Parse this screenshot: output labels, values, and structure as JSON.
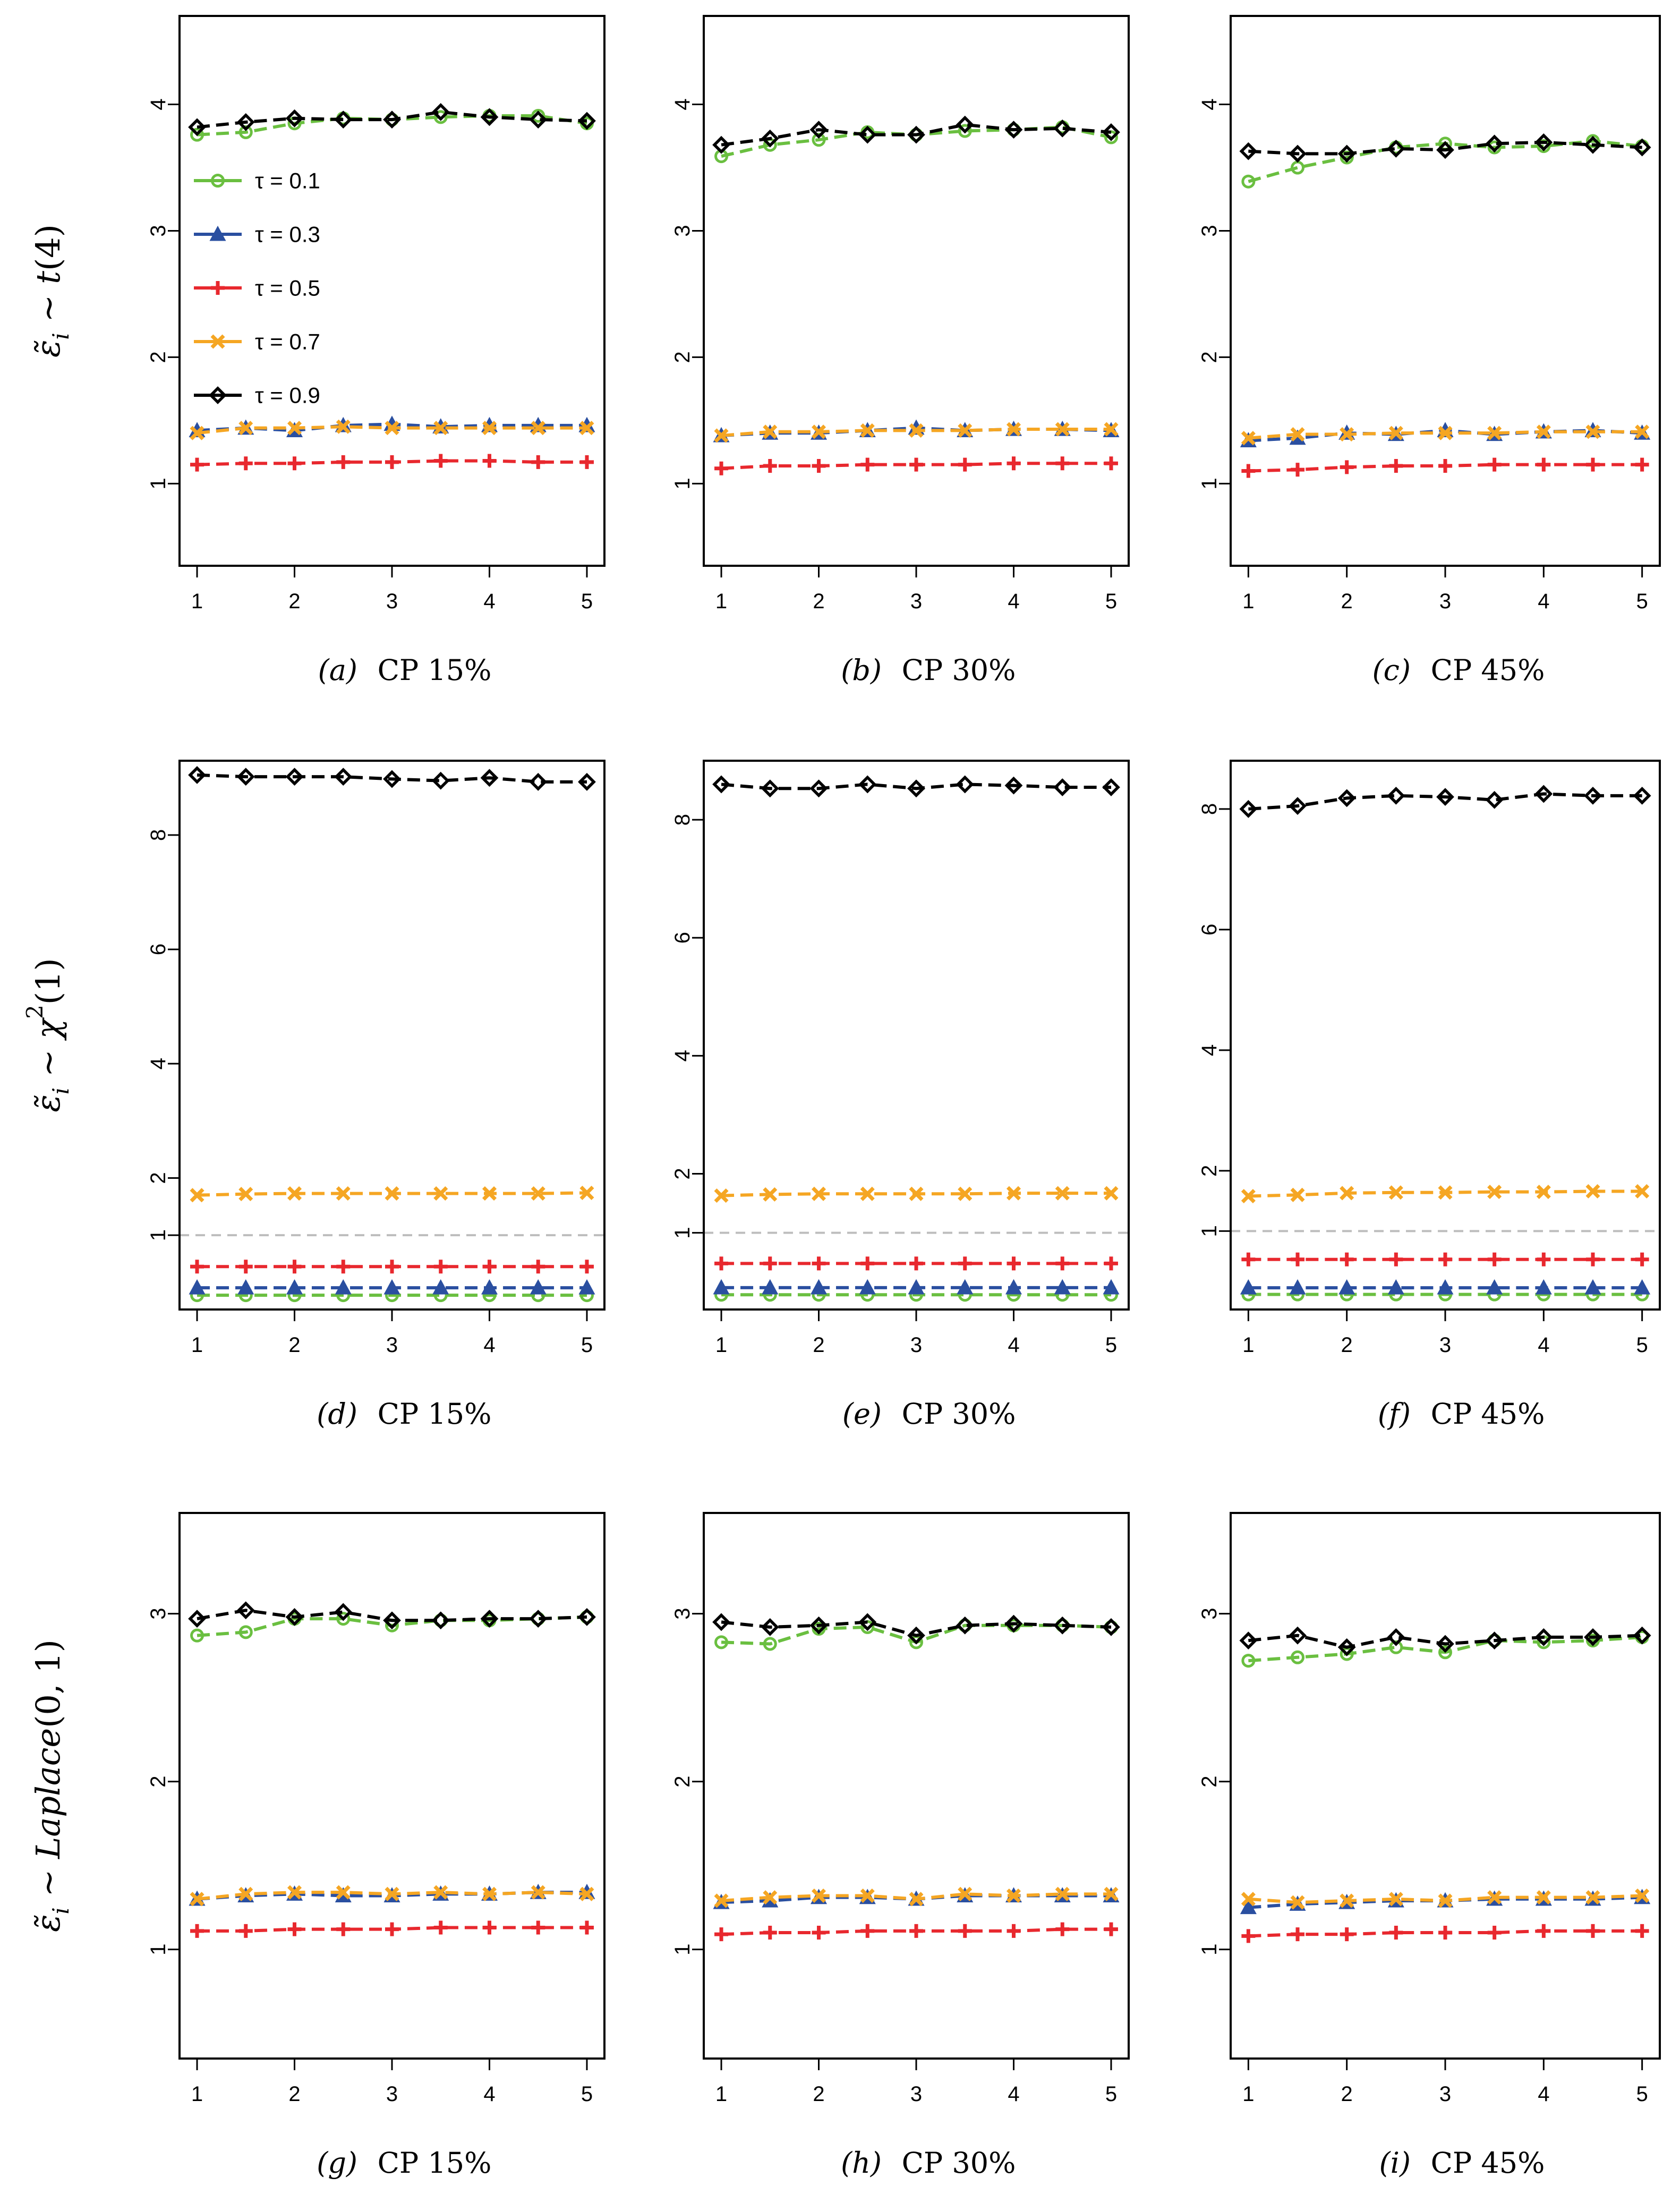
{
  "figure": {
    "row_labels": [
      {
        "parts": [
          {
            "t": "ε̃",
            "it": true
          },
          {
            "t": "i",
            "it": true,
            "sub": true
          },
          {
            "t": " ~ "
          },
          {
            "t": "t",
            "it": true
          },
          {
            "t": "(4)"
          }
        ]
      },
      {
        "parts": [
          {
            "t": "ε̃",
            "it": true
          },
          {
            "t": "i",
            "it": true,
            "sub": true
          },
          {
            "t": " ~ "
          },
          {
            "t": "χ",
            "it": true
          },
          {
            "t": "2",
            "sup": true
          },
          {
            "t": "(1)"
          }
        ]
      },
      {
        "parts": [
          {
            "t": "ε̃",
            "it": true
          },
          {
            "t": "i",
            "it": true,
            "sub": true
          },
          {
            "t": " ~ "
          },
          {
            "t": "Laplace",
            "it": true
          },
          {
            "t": "(0, 1)"
          }
        ]
      }
    ]
  },
  "legend": {
    "location": "panel-a-left",
    "entries": [
      {
        "label": "τ = 0.1",
        "color": "#6abf40",
        "marker": "circle"
      },
      {
        "label": "τ = 0.3",
        "color": "#2a4fa0",
        "marker": "triangle"
      },
      {
        "label": "τ = 0.5",
        "color": "#e8282e",
        "marker": "plus"
      },
      {
        "label": "τ = 0.7",
        "color": "#f5a623",
        "marker": "cross"
      },
      {
        "label": "τ = 0.9",
        "color": "#000000",
        "marker": "diamond"
      }
    ]
  },
  "chart_data": [
    {
      "type": "line",
      "id": "a",
      "caption_letter": "(a)",
      "caption_text": "CP 15%",
      "x": [
        1,
        1.5,
        2,
        2.5,
        3,
        3.5,
        4,
        4.5,
        5
      ],
      "xticks": [
        1,
        2,
        3,
        4,
        5
      ],
      "xlim": [
        0.82,
        5.18
      ],
      "ylim": [
        0.35,
        4.7
      ],
      "yticks": [
        1,
        2,
        3,
        4
      ],
      "series": [
        {
          "name": "τ = 0.1",
          "values": [
            3.76,
            3.78,
            3.85,
            3.89,
            3.88,
            3.9,
            3.91,
            3.91,
            3.85
          ]
        },
        {
          "name": "τ = 0.3",
          "values": [
            1.42,
            1.44,
            1.42,
            1.46,
            1.47,
            1.45,
            1.46,
            1.46,
            1.46
          ]
        },
        {
          "name": "τ = 0.5",
          "values": [
            1.15,
            1.16,
            1.16,
            1.17,
            1.17,
            1.18,
            1.18,
            1.17,
            1.17
          ]
        },
        {
          "name": "τ = 0.7",
          "values": [
            1.4,
            1.44,
            1.44,
            1.45,
            1.44,
            1.44,
            1.44,
            1.44,
            1.44
          ]
        },
        {
          "name": "τ = 0.9",
          "values": [
            3.82,
            3.86,
            3.89,
            3.88,
            3.88,
            3.94,
            3.9,
            3.88,
            3.87
          ]
        }
      ]
    },
    {
      "type": "line",
      "id": "b",
      "caption_letter": "(b)",
      "caption_text": "CP 30%",
      "x": [
        1,
        1.5,
        2,
        2.5,
        3,
        3.5,
        4,
        4.5,
        5
      ],
      "xticks": [
        1,
        2,
        3,
        4,
        5
      ],
      "xlim": [
        0.82,
        5.18
      ],
      "ylim": [
        0.35,
        4.7
      ],
      "yticks": [
        1,
        2,
        3,
        4
      ],
      "series": [
        {
          "name": "τ = 0.1",
          "values": [
            3.59,
            3.68,
            3.72,
            3.78,
            3.76,
            3.79,
            3.8,
            3.82,
            3.74
          ]
        },
        {
          "name": "τ = 0.3",
          "values": [
            1.38,
            1.4,
            1.4,
            1.42,
            1.44,
            1.42,
            1.43,
            1.43,
            1.42
          ]
        },
        {
          "name": "τ = 0.5",
          "values": [
            1.12,
            1.14,
            1.14,
            1.15,
            1.15,
            1.15,
            1.16,
            1.16,
            1.16
          ]
        },
        {
          "name": "τ = 0.7",
          "values": [
            1.38,
            1.41,
            1.41,
            1.42,
            1.42,
            1.42,
            1.43,
            1.43,
            1.43
          ]
        },
        {
          "name": "τ = 0.9",
          "values": [
            3.68,
            3.73,
            3.8,
            3.76,
            3.76,
            3.84,
            3.8,
            3.81,
            3.78
          ]
        }
      ]
    },
    {
      "type": "line",
      "id": "c",
      "caption_letter": "(c)",
      "caption_text": "CP 45%",
      "x": [
        1,
        1.5,
        2,
        2.5,
        3,
        3.5,
        4,
        4.5,
        5
      ],
      "xticks": [
        1,
        2,
        3,
        4,
        5
      ],
      "xlim": [
        0.82,
        5.18
      ],
      "ylim": [
        0.35,
        4.7
      ],
      "yticks": [
        1,
        2,
        3,
        4
      ],
      "series": [
        {
          "name": "τ = 0.1",
          "values": [
            3.39,
            3.5,
            3.58,
            3.66,
            3.69,
            3.66,
            3.67,
            3.71,
            3.67
          ]
        },
        {
          "name": "τ = 0.3",
          "values": [
            1.34,
            1.36,
            1.4,
            1.39,
            1.42,
            1.39,
            1.41,
            1.42,
            1.4
          ]
        },
        {
          "name": "τ = 0.5",
          "values": [
            1.1,
            1.11,
            1.13,
            1.14,
            1.14,
            1.15,
            1.15,
            1.15,
            1.15
          ]
        },
        {
          "name": "τ = 0.7",
          "values": [
            1.36,
            1.39,
            1.39,
            1.4,
            1.4,
            1.4,
            1.41,
            1.41,
            1.41
          ]
        },
        {
          "name": "τ = 0.9",
          "values": [
            3.63,
            3.61,
            3.61,
            3.65,
            3.64,
            3.69,
            3.7,
            3.68,
            3.66
          ]
        }
      ]
    },
    {
      "type": "line",
      "id": "d",
      "caption_letter": "(d)",
      "caption_text": "CP 15%",
      "x": [
        1,
        1.5,
        2,
        2.5,
        3,
        3.5,
        4,
        4.5,
        5
      ],
      "xticks": [
        1,
        2,
        3,
        4,
        5
      ],
      "xlim": [
        0.82,
        5.18
      ],
      "ylim": [
        -0.3,
        9.3
      ],
      "yticks": [
        1,
        2,
        4,
        6,
        8
      ],
      "hline": 1,
      "series": [
        {
          "name": "τ = 0.1",
          "values": [
            -0.05,
            -0.05,
            -0.05,
            -0.05,
            -0.05,
            -0.05,
            -0.05,
            -0.05,
            -0.05
          ]
        },
        {
          "name": "τ = 0.3",
          "values": [
            0.08,
            0.08,
            0.08,
            0.08,
            0.08,
            0.08,
            0.08,
            0.08,
            0.08
          ]
        },
        {
          "name": "τ = 0.5",
          "values": [
            0.45,
            0.45,
            0.45,
            0.45,
            0.45,
            0.45,
            0.45,
            0.45,
            0.45
          ]
        },
        {
          "name": "τ = 0.7",
          "values": [
            1.7,
            1.72,
            1.73,
            1.73,
            1.73,
            1.73,
            1.73,
            1.73,
            1.74
          ]
        },
        {
          "name": "τ = 0.9",
          "values": [
            9.05,
            9.02,
            9.02,
            9.02,
            8.98,
            8.95,
            9.0,
            8.93,
            8.93
          ]
        }
      ]
    },
    {
      "type": "line",
      "id": "e",
      "caption_letter": "(e)",
      "caption_text": "CP 30%",
      "x": [
        1,
        1.5,
        2,
        2.5,
        3,
        3.5,
        4,
        4.5,
        5
      ],
      "xticks": [
        1,
        2,
        3,
        4,
        5
      ],
      "xlim": [
        0.82,
        5.18
      ],
      "ylim": [
        -0.3,
        9.0
      ],
      "yticks": [
        1,
        2,
        4,
        6,
        8
      ],
      "hline": 1,
      "series": [
        {
          "name": "τ = 0.1",
          "values": [
            -0.05,
            -0.05,
            -0.05,
            -0.05,
            -0.05,
            -0.05,
            -0.05,
            -0.05,
            -0.05
          ]
        },
        {
          "name": "τ = 0.3",
          "values": [
            0.07,
            0.07,
            0.07,
            0.07,
            0.07,
            0.07,
            0.07,
            0.07,
            0.07
          ]
        },
        {
          "name": "τ = 0.5",
          "values": [
            0.48,
            0.48,
            0.48,
            0.48,
            0.48,
            0.48,
            0.48,
            0.48,
            0.48
          ]
        },
        {
          "name": "τ = 0.7",
          "values": [
            1.63,
            1.65,
            1.66,
            1.66,
            1.66,
            1.66,
            1.67,
            1.67,
            1.67
          ]
        },
        {
          "name": "τ = 0.9",
          "values": [
            8.6,
            8.53,
            8.53,
            8.6,
            8.53,
            8.6,
            8.58,
            8.55,
            8.55
          ]
        }
      ]
    },
    {
      "type": "line",
      "id": "f",
      "caption_letter": "(f)",
      "caption_text": "CP 45%",
      "x": [
        1,
        1.5,
        2,
        2.5,
        3,
        3.5,
        4,
        4.5,
        5
      ],
      "xticks": [
        1,
        2,
        3,
        4,
        5
      ],
      "xlim": [
        0.82,
        5.18
      ],
      "ylim": [
        -0.3,
        8.8
      ],
      "yticks": [
        1,
        2,
        4,
        6,
        8
      ],
      "hline": 1,
      "series": [
        {
          "name": "τ = 0.1",
          "values": [
            -0.05,
            -0.05,
            -0.05,
            -0.05,
            -0.05,
            -0.05,
            -0.05,
            -0.05,
            -0.05
          ]
        },
        {
          "name": "τ = 0.3",
          "values": [
            0.06,
            0.06,
            0.06,
            0.06,
            0.06,
            0.06,
            0.06,
            0.06,
            0.06
          ]
        },
        {
          "name": "τ = 0.5",
          "values": [
            0.53,
            0.53,
            0.53,
            0.53,
            0.53,
            0.53,
            0.53,
            0.53,
            0.53
          ]
        },
        {
          "name": "τ = 0.7",
          "values": [
            1.58,
            1.6,
            1.63,
            1.64,
            1.64,
            1.65,
            1.65,
            1.66,
            1.66
          ]
        },
        {
          "name": "τ = 0.9",
          "values": [
            8.0,
            8.05,
            8.18,
            8.22,
            8.2,
            8.15,
            8.25,
            8.22,
            8.22
          ]
        }
      ]
    },
    {
      "type": "line",
      "id": "g",
      "caption_letter": "(g)",
      "caption_text": "CP 15%",
      "x": [
        1,
        1.5,
        2,
        2.5,
        3,
        3.5,
        4,
        4.5,
        5
      ],
      "xticks": [
        1,
        2,
        3,
        4,
        5
      ],
      "xlim": [
        0.82,
        5.18
      ],
      "ylim": [
        0.35,
        3.6
      ],
      "yticks": [
        1,
        2,
        3
      ],
      "series": [
        {
          "name": "τ = 0.1",
          "values": [
            2.87,
            2.89,
            2.97,
            2.97,
            2.93,
            2.96,
            2.96,
            2.97,
            2.98
          ]
        },
        {
          "name": "τ = 0.3",
          "values": [
            1.3,
            1.32,
            1.33,
            1.32,
            1.32,
            1.33,
            1.33,
            1.34,
            1.34
          ]
        },
        {
          "name": "τ = 0.5",
          "values": [
            1.11,
            1.11,
            1.12,
            1.12,
            1.12,
            1.13,
            1.13,
            1.13,
            1.13
          ]
        },
        {
          "name": "τ = 0.7",
          "values": [
            1.3,
            1.33,
            1.34,
            1.34,
            1.33,
            1.34,
            1.33,
            1.34,
            1.33
          ]
        },
        {
          "name": "τ = 0.9",
          "values": [
            2.97,
            3.02,
            2.98,
            3.01,
            2.96,
            2.96,
            2.97,
            2.97,
            2.98
          ]
        }
      ]
    },
    {
      "type": "line",
      "id": "h",
      "caption_letter": "(h)",
      "caption_text": "CP 30%",
      "x": [
        1,
        1.5,
        2,
        2.5,
        3,
        3.5,
        4,
        4.5,
        5
      ],
      "xticks": [
        1,
        2,
        3,
        4,
        5
      ],
      "xlim": [
        0.82,
        5.18
      ],
      "ylim": [
        0.35,
        3.6
      ],
      "yticks": [
        1,
        2,
        3
      ],
      "series": [
        {
          "name": "τ = 0.1",
          "values": [
            2.83,
            2.82,
            2.91,
            2.92,
            2.83,
            2.93,
            2.93,
            2.93,
            2.92
          ]
        },
        {
          "name": "τ = 0.3",
          "values": [
            1.28,
            1.29,
            1.31,
            1.31,
            1.3,
            1.32,
            1.32,
            1.32,
            1.32
          ]
        },
        {
          "name": "τ = 0.5",
          "values": [
            1.09,
            1.1,
            1.1,
            1.11,
            1.11,
            1.11,
            1.11,
            1.12,
            1.12
          ]
        },
        {
          "name": "τ = 0.7",
          "values": [
            1.29,
            1.31,
            1.32,
            1.32,
            1.3,
            1.33,
            1.32,
            1.33,
            1.33
          ]
        },
        {
          "name": "τ = 0.9",
          "values": [
            2.95,
            2.92,
            2.93,
            2.95,
            2.87,
            2.93,
            2.94,
            2.93,
            2.92
          ]
        }
      ]
    },
    {
      "type": "line",
      "id": "i",
      "caption_letter": "(i)",
      "caption_text": "CP 45%",
      "x": [
        1,
        1.5,
        2,
        2.5,
        3,
        3.5,
        4,
        4.5,
        5
      ],
      "xticks": [
        1,
        2,
        3,
        4,
        5
      ],
      "xlim": [
        0.82,
        5.18
      ],
      "ylim": [
        0.35,
        3.6
      ],
      "yticks": [
        1,
        2,
        3
      ],
      "series": [
        {
          "name": "τ = 0.1",
          "values": [
            2.72,
            2.74,
            2.76,
            2.8,
            2.77,
            2.84,
            2.83,
            2.84,
            2.86
          ]
        },
        {
          "name": "τ = 0.3",
          "values": [
            1.25,
            1.27,
            1.28,
            1.29,
            1.29,
            1.3,
            1.3,
            1.3,
            1.31
          ]
        },
        {
          "name": "τ = 0.5",
          "values": [
            1.08,
            1.09,
            1.09,
            1.1,
            1.1,
            1.1,
            1.11,
            1.11,
            1.11
          ]
        },
        {
          "name": "τ = 0.7",
          "values": [
            1.3,
            1.28,
            1.29,
            1.3,
            1.29,
            1.31,
            1.31,
            1.31,
            1.32
          ]
        },
        {
          "name": "τ = 0.9",
          "values": [
            2.84,
            2.87,
            2.8,
            2.86,
            2.82,
            2.84,
            2.86,
            2.86,
            2.87
          ]
        }
      ]
    }
  ]
}
